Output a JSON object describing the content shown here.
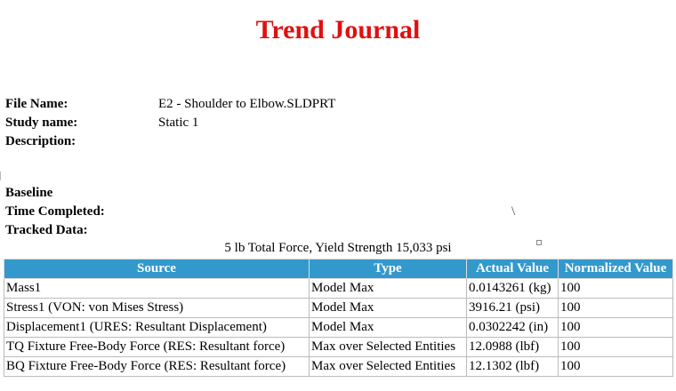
{
  "title": "Trend Journal",
  "info": {
    "file_name_label": "File Name:",
    "file_name_value": "E2 - Shoulder to Elbow.SLDPRT",
    "study_name_label": "Study name:",
    "study_name_value": "Static 1",
    "description_label": "Description:",
    "baseline_label": "Baseline",
    "time_completed_label": "Time Completed:",
    "time_completed_mark": "\\",
    "tracked_data_label": "Tracked Data:"
  },
  "caption": "5 lb Total Force, Yield Strength 15,033 psi",
  "table": {
    "headers": [
      "Source",
      "Type",
      "Actual Value",
      "Normalized Value"
    ],
    "rows": [
      [
        "Mass1",
        "Model Max",
        "0.0143261 (kg)",
        "100"
      ],
      [
        "Stress1 (VON: von Mises Stress)",
        "Model Max",
        "3916.21 (psi)",
        "100"
      ],
      [
        "Displacement1 (URES: Resultant Displacement)",
        "Model Max",
        "0.0302242 (in)",
        "100"
      ],
      [
        "TQ Fixture Free-Body Force (RES: Resultant force)",
        "Max over Selected Entities",
        "12.0988 (lbf)",
        "100"
      ],
      [
        "BQ Fixture Free-Body Force (RES: Resultant force)",
        "Max over Selected Entities",
        "12.1302 (lbf)",
        "100"
      ]
    ]
  }
}
